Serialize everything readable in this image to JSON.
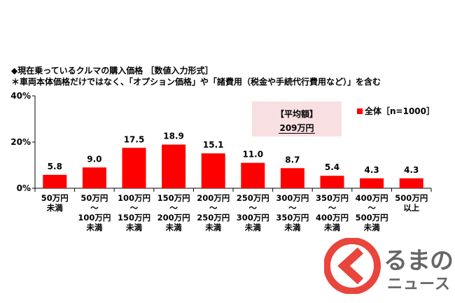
{
  "title": "◆現在乗っているクルマの購入価格 ［数値入力形式］",
  "subtitle": "＊車両本体価格だけではなく、「オプション価格」や「諸費用（税金や手続代行費用など）」を含む",
  "average": {
    "label": "【平均額】",
    "value": "209万円"
  },
  "logo": {
    "top": "るまの",
    "bottom": "ニュース",
    "icon": "logo-circle-chevron-icon"
  },
  "colors": {
    "bar": "#ff0000",
    "avg_box": "#f8dfe2",
    "logo_red": "#e8453c"
  },
  "chart_data": {
    "type": "bar",
    "categories": [
      [
        "50万円",
        "未満"
      ],
      [
        "50万円",
        "～",
        "100万円",
        "未満"
      ],
      [
        "100万円",
        "～",
        "150万円",
        "未満"
      ],
      [
        "150万円",
        "～",
        "200万円",
        "未満"
      ],
      [
        "200万円",
        "～",
        "250万円",
        "未満"
      ],
      [
        "250万円",
        "～",
        "300万円",
        "未満"
      ],
      [
        "300万円",
        "～",
        "350万円",
        "未満"
      ],
      [
        "350万円",
        "～",
        "400万円",
        "未満"
      ],
      [
        "400万円",
        "～",
        "500万円",
        "未満"
      ],
      [
        "500万円",
        "以上"
      ]
    ],
    "series": [
      {
        "name": "全体［n=1000］",
        "values": [
          5.8,
          9.0,
          17.5,
          18.9,
          15.1,
          11.0,
          8.7,
          5.4,
          4.3,
          4.3
        ]
      }
    ],
    "value_labels": [
      "5.8",
      "9.0",
      "17.5",
      "18.9",
      "15.1",
      "11.0",
      "8.7",
      "5.4",
      "4.3",
      "4.3"
    ],
    "y_ticks": [
      0,
      20,
      40
    ],
    "y_tick_labels": [
      "0%",
      "20%",
      "40%"
    ],
    "ylim": [
      0,
      40
    ],
    "grid": false,
    "legend": "top-right"
  }
}
